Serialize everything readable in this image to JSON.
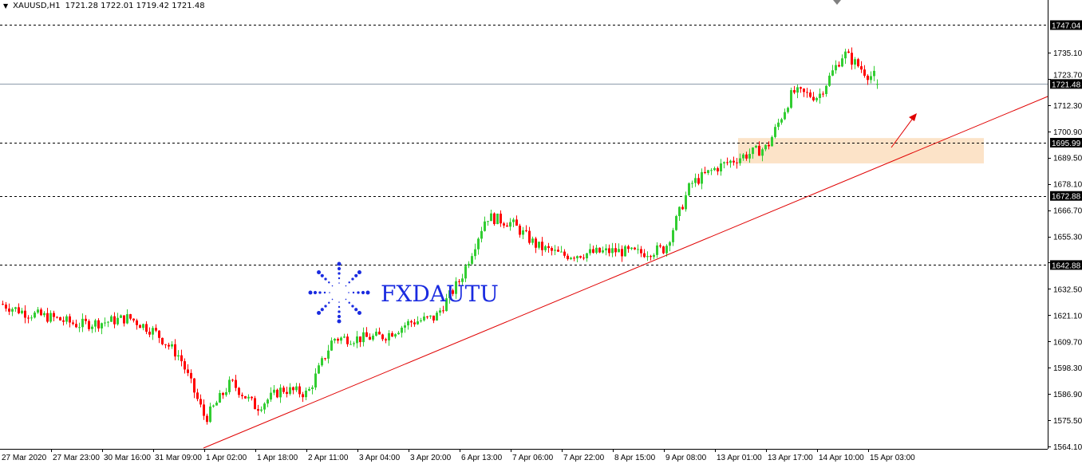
{
  "header": {
    "symbol": "XAUUSD,H1",
    "ohlc": "1721.28 1722.01 1719.42 1721.48"
  },
  "watermark": {
    "text": "FXDAUTU"
  },
  "colors": {
    "up": "#32CD32",
    "down": "#FF0000",
    "trendline": "#E00000",
    "zone": "#FCE3C8",
    "grid_dash": "#000000",
    "price_line": "#8C9BAA"
  },
  "chart_data": {
    "type": "candlestick",
    "timeframe": "H1",
    "ylim": [
      1564.1,
      1747.04
    ],
    "y_ticks": [
      "1747.04",
      "1735.10",
      "1723.70",
      "1721.48",
      "1712.30",
      "1700.90",
      "1695.99",
      "1689.50",
      "1678.10",
      "1672.88",
      "1666.70",
      "1655.30",
      "1642.88",
      "1632.50",
      "1621.10",
      "1609.70",
      "1598.30",
      "1586.90",
      "1575.50",
      "1564.10"
    ],
    "y_tick_values": [
      1735.1,
      1723.7,
      1712.3,
      1700.9,
      1689.5,
      1678.1,
      1666.7,
      1655.3,
      1643.9,
      1632.5,
      1621.1,
      1609.7,
      1598.3,
      1586.9,
      1575.5,
      1564.1
    ],
    "x_labels": [
      "27 Mar 2020",
      "27 Mar 23:00",
      "30 Mar 16:00",
      "31 Mar 09:00",
      "1 Apr 02:00",
      "1 Apr 18:00",
      "2 Apr 11:00",
      "3 Apr 04:00",
      "3 Apr 20:00",
      "6 Apr 13:00",
      "7 Apr 06:00",
      "7 Apr 22:00",
      "8 Apr 15:00",
      "9 Apr 08:00",
      "13 Apr 01:00",
      "13 Apr 17:00",
      "14 Apr 10:00",
      "15 Apr 03:00"
    ],
    "approx_close_every_8h": [
      1626,
      1622,
      1620,
      1617,
      1618,
      1620,
      1614,
      1603,
      1576,
      1592,
      1581,
      1589,
      1587,
      1611,
      1611,
      1612,
      1618,
      1620,
      1637,
      1664,
      1661,
      1651,
      1647,
      1648,
      1649,
      1648,
      1650,
      1678,
      1685,
      1690,
      1694,
      1718,
      1716,
      1735,
      1725
    ],
    "last": {
      "open": 1721.28,
      "high": 1722.01,
      "low": 1719.42,
      "close": 1721.48
    },
    "levels": [
      {
        "price": 1747.04,
        "label": "1747.04",
        "style": "dashed"
      },
      {
        "price": 1695.99,
        "label": "1695.99",
        "style": "dashed"
      },
      {
        "price": 1672.88,
        "label": "1672.88",
        "style": "dashed"
      },
      {
        "price": 1642.88,
        "label": "1642.88",
        "style": "dashed"
      },
      {
        "price": 1721.48,
        "label": "1721.48",
        "style": "bid-line"
      }
    ],
    "zone": {
      "from": 1687,
      "to": 1698,
      "start": "13 Apr",
      "color": "#FCE3C8"
    },
    "trendline": {
      "start_price": 1564.1,
      "start_time": "1 Apr 02:00",
      "direction": "up"
    }
  }
}
